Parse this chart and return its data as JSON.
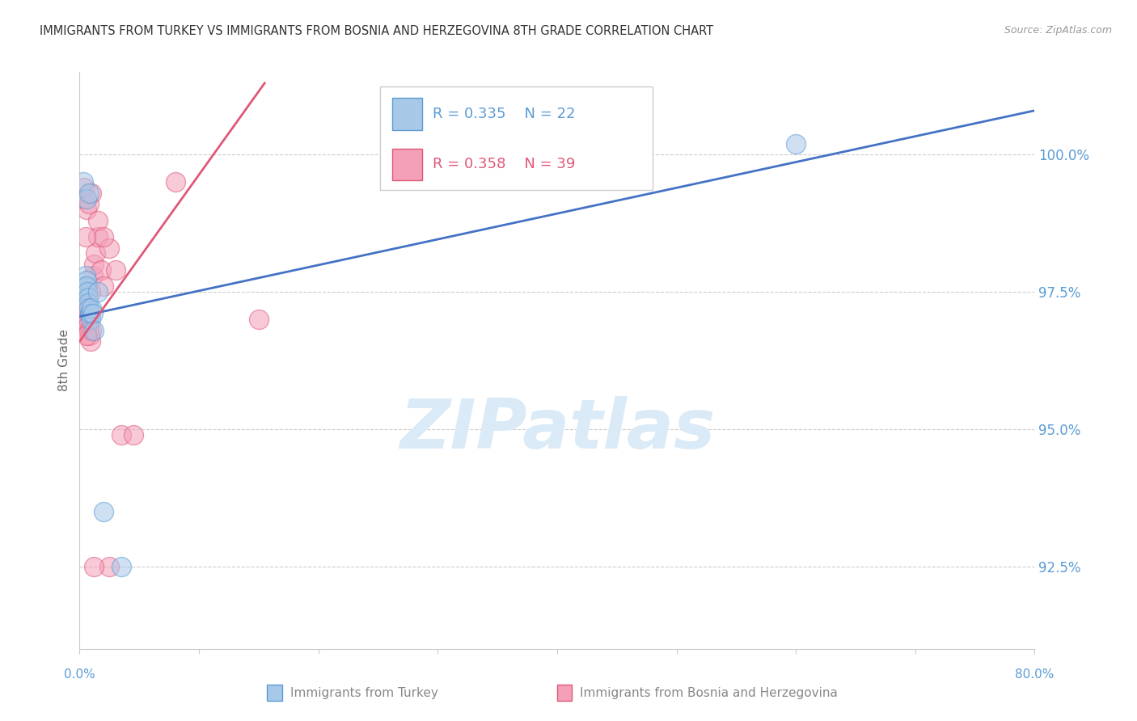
{
  "title": "IMMIGRANTS FROM TURKEY VS IMMIGRANTS FROM BOSNIA AND HERZEGOVINA 8TH GRADE CORRELATION CHART",
  "source": "Source: ZipAtlas.com",
  "ylabel_label": "8th Grade",
  "xlim": [
    0.0,
    80.0
  ],
  "ylim": [
    91.0,
    101.5
  ],
  "y_display_min": 80.0,
  "y_display_max": 100.0,
  "legend_blue_r": "R = 0.335",
  "legend_blue_n": "N = 22",
  "legend_pink_r": "R = 0.358",
  "legend_pink_n": "N = 39",
  "blue_face": "#a8c8e8",
  "blue_edge": "#5b9bd5",
  "pink_face": "#f4a0b8",
  "pink_edge": "#e05878",
  "blue_line_color": "#4472c4",
  "pink_line_color": "#e05878",
  "watermark": "ZIPatlas",
  "watermark_color": "#daeaf7",
  "blue_x": [
    0.3,
    0.4,
    0.5,
    0.55,
    0.6,
    0.65,
    0.7,
    0.75,
    0.8,
    0.85,
    0.9,
    0.95,
    1.0,
    1.1,
    1.5,
    2.0,
    3.5,
    0.3,
    0.55,
    0.8,
    60.0,
    1.2
  ],
  "blue_y": [
    97.5,
    97.6,
    97.8,
    97.7,
    97.6,
    97.5,
    97.4,
    97.3,
    97.2,
    97.1,
    97.0,
    97.1,
    97.2,
    97.1,
    97.5,
    93.5,
    92.5,
    99.5,
    99.2,
    99.3,
    100.2,
    96.8
  ],
  "pink_x": [
    0.2,
    0.3,
    0.35,
    0.4,
    0.45,
    0.5,
    0.55,
    0.6,
    0.65,
    0.7,
    0.75,
    0.8,
    0.85,
    0.9,
    1.0,
    1.1,
    1.2,
    1.3,
    1.5,
    1.8,
    2.0,
    2.5,
    3.0,
    0.25,
    0.4,
    0.6,
    0.8,
    1.0,
    1.5,
    2.0,
    2.5,
    3.5,
    0.5,
    0.9,
    1.2,
    4.5,
    8.0,
    15.0,
    0.6
  ],
  "pink_y": [
    97.3,
    97.2,
    97.1,
    97.0,
    96.9,
    97.5,
    97.3,
    97.6,
    97.2,
    97.0,
    96.9,
    96.8,
    96.7,
    96.6,
    96.8,
    97.8,
    98.0,
    98.2,
    98.5,
    97.9,
    97.6,
    98.3,
    97.9,
    99.2,
    99.4,
    99.0,
    99.1,
    99.3,
    98.8,
    98.5,
    92.5,
    94.9,
    98.5,
    97.5,
    92.5,
    94.9,
    99.5,
    97.0,
    96.7
  ],
  "dot_size": 300,
  "blue_line_x0": 0.0,
  "blue_line_x1": 80.0,
  "blue_line_y0": 97.05,
  "blue_line_y1": 100.8,
  "pink_line_x0": 0.0,
  "pink_line_x1": 15.5,
  "pink_line_y0": 96.6,
  "pink_line_y1": 101.3,
  "ytick_values": [
    92.5,
    95.0,
    97.5,
    100.0
  ],
  "ytick_labels": [
    "92.5%",
    "95.0%",
    "97.5%",
    "100.0%"
  ],
  "ytick_color": "#5b9bd5",
  "xtick_left_label": "0.0%",
  "xtick_right_label": "80.0%",
  "xtick_color": "#5b9bd5",
  "grid_color": "#cccccc",
  "bg_color": "#ffffff",
  "title_color": "#333333",
  "axis_color": "#cccccc",
  "bottom_legend_left": "Immigrants from Turkey",
  "bottom_legend_right": "Immigrants from Bosnia and Herzegovina"
}
